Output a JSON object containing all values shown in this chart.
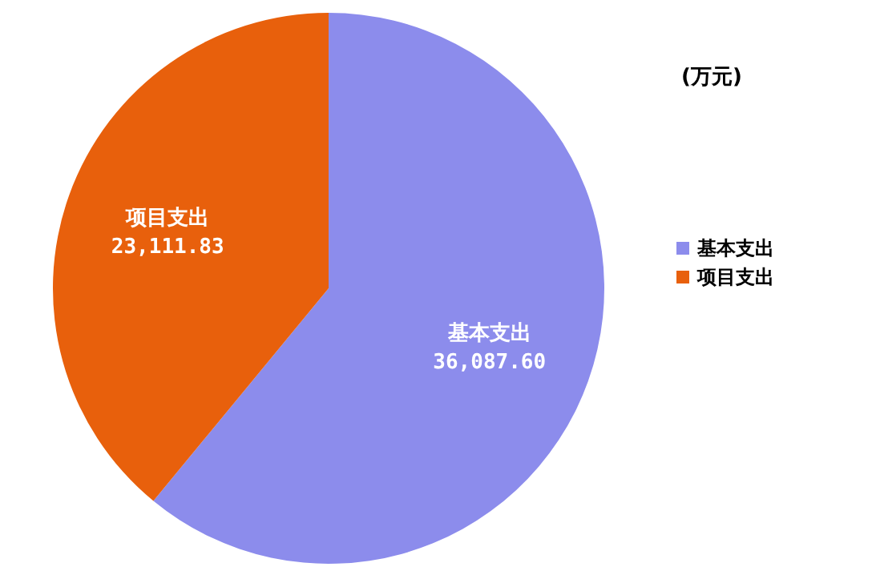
{
  "chart_data": {
    "type": "pie",
    "categories": [
      "基本支出",
      "项目支出"
    ],
    "values": [
      36087.6,
      23111.83
    ],
    "colors": [
      "#8c8cec",
      "#e8600c"
    ],
    "value_labels": [
      "36,087.60",
      "23,111.83"
    ],
    "legend": "right",
    "annotations": [
      "(万元)"
    ]
  }
}
